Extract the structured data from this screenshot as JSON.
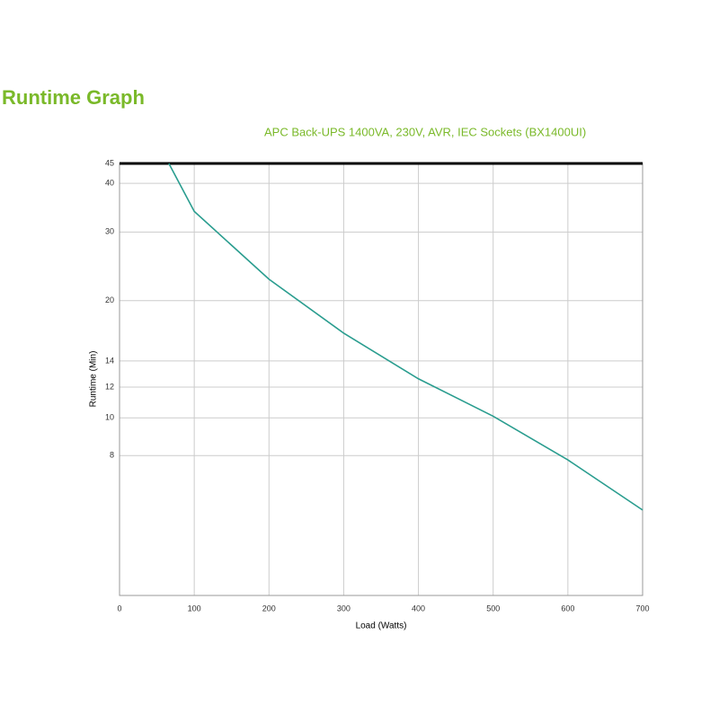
{
  "chart_data": {
    "type": "line",
    "title": "Runtime Graph",
    "subtitle": "APC Back-UPS 1400VA, 230V, AVR, IEC Sockets (BX1400UI)",
    "x_label": "Load (Watts)",
    "y_label": "Runtime (Min)",
    "x": [
      66,
      100,
      200,
      300,
      400,
      500,
      600,
      700
    ],
    "series": [
      {
        "name": "Runtime",
        "color": "#2a9d8f",
        "values": [
          45,
          33.9,
          22.7,
          16.5,
          12.6,
          10.1,
          7.8,
          5.8
        ]
      }
    ],
    "xlim": [
      0,
      700
    ],
    "xticks": [
      0,
      100,
      200,
      300,
      400,
      500,
      600,
      700
    ],
    "ylim": [
      3.5,
      45
    ],
    "yticks": [
      8,
      10,
      12,
      14,
      20,
      30,
      40,
      45
    ],
    "ylog": true,
    "grid": true,
    "title_color": "#7ab929"
  }
}
